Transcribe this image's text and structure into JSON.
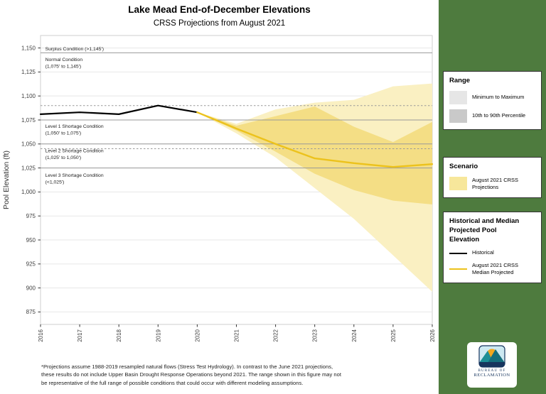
{
  "title": "Lake Mead End-of-December Elevations",
  "subtitle": "CRSS Projections from August 2021",
  "footnote_lines": [
    "*Projections assume 1988-2019 resampled natural flows (Stress Test Hydrology).  In contrast to the June 2021 projections,",
    "these results do not include Upper Basin Drought Response Operations beyond 2021.  The range shown in this figure may not",
    "be representative of the full range of possible conditions that could occur with different modeling assumptions."
  ],
  "colors": {
    "sidebar_green": "#4e7b3e",
    "grid": "#e7e7e7",
    "condition_line": "#999999",
    "plot_border": "#cfcfcf",
    "axis_text": "#404040"
  },
  "chart_data": {
    "type": "line",
    "title": "Lake Mead End-of-December Elevations",
    "subtitle": "CRSS Projections from August 2021",
    "ylabel": "Pool Elevation (ft)",
    "xlabel": "",
    "xlim": [
      2016,
      2026
    ],
    "ylim": [
      862,
      1163
    ],
    "grid": true,
    "yticks": [
      875,
      900,
      925,
      950,
      975,
      1000,
      1025,
      1050,
      1075,
      1100,
      1125,
      1150
    ],
    "ytick_labels": [
      "875",
      "900",
      "925",
      "950",
      "975",
      "1,000",
      "1,025",
      "1,050",
      "1,075",
      "1,100",
      "1,125",
      "1,150"
    ],
    "xticks": [
      2016,
      2017,
      2018,
      2019,
      2020,
      2021,
      2022,
      2023,
      2024,
      2025,
      2026
    ],
    "xtick_labels": [
      "2016",
      "2017",
      "2018",
      "2019",
      "2020",
      "2021",
      "2022",
      "2023",
      "2024",
      "2025",
      "2026"
    ],
    "condition_lines_solid": [
      1145,
      1075,
      1050,
      1025
    ],
    "condition_lines_dashed": [
      1090,
      1045
    ],
    "annotations": [
      {
        "x": 2016.12,
        "y": 1147.5,
        "lines": [
          "Surplus Condition (>1,145')"
        ]
      },
      {
        "x": 2016.12,
        "y": 1136.5,
        "lines": [
          "Normal Condition",
          "(1,075' to 1,145')"
        ]
      },
      {
        "x": 2016.12,
        "y": 1067.0,
        "lines": [
          "Level 1 Shortage Condition",
          "(1,050' to 1,075')"
        ]
      },
      {
        "x": 2016.12,
        "y": 1041.5,
        "lines": [
          "Level 2 Shortage Condition",
          "(1,025' to 1,050')"
        ]
      },
      {
        "x": 2016.12,
        "y": 1016.0,
        "lines": [
          "Level 3 Shortage Condition",
          "(<1,025')"
        ]
      }
    ],
    "bands": [
      {
        "name": "Minimum to Maximum",
        "color": "#faf0c2",
        "x": [
          2020,
          2021,
          2022,
          2023,
          2024,
          2025,
          2026
        ],
        "upper": [
          1083,
          1071,
          1086,
          1093,
          1096,
          1110,
          1113
        ],
        "lower": [
          1083,
          1061,
          1036,
          1004,
          972,
          934,
          896
        ]
      },
      {
        "name": "10th to 90th Percentile",
        "color": "#f4de85",
        "x": [
          2020,
          2021,
          2022,
          2023,
          2024,
          2025,
          2026
        ],
        "upper": [
          1083,
          1069,
          1079,
          1089,
          1068,
          1052,
          1073
        ],
        "lower": [
          1083,
          1064,
          1042,
          1019,
          1002,
          991,
          987
        ]
      }
    ],
    "series": [
      {
        "name": "Historical",
        "color": "#000000",
        "width": 2.2,
        "x": [
          2016,
          2017,
          2018,
          2019,
          2020
        ],
        "values": [
          1081,
          1083,
          1081,
          1090,
          1083
        ]
      },
      {
        "name": "August 2021 CRSS Median Projected",
        "color": "#ecc21c",
        "width": 2.4,
        "x": [
          2020,
          2021,
          2022,
          2023,
          2024,
          2025,
          2026
        ],
        "values": [
          1083,
          1066,
          1050,
          1035,
          1030,
          1026,
          1029
        ]
      }
    ]
  },
  "legends": {
    "range": {
      "title": "Range",
      "items": [
        {
          "label": "Minimum to Maximum",
          "swatch_color": "#e6e6e6"
        },
        {
          "label": "10th to 90th Percentile",
          "swatch_color": "#c9c9c9"
        }
      ]
    },
    "scenario": {
      "title": "Scenario",
      "items": [
        {
          "label": "August 2021 CRSS Projections",
          "swatch_color": "#f7e79b"
        }
      ]
    },
    "lines": {
      "title": "Historical and Median Projected Pool Elevation",
      "items": [
        {
          "label": "Historical"
        },
        {
          "label": "August 2021 CRSS Median Projected"
        }
      ]
    }
  },
  "logo": {
    "line1": "BUREAU OF",
    "line2": "RECLAMATION"
  }
}
